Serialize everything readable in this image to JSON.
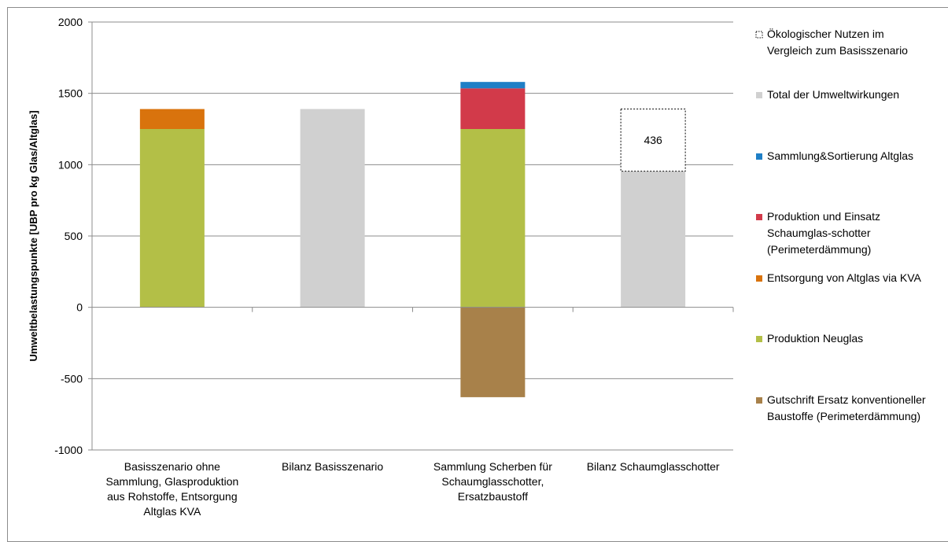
{
  "chart_data": {
    "type": "bar",
    "stacked": true,
    "ylabel": "Umweltbelastungspunkte [UBP pro kg  Glas/Altglas]",
    "ylim": [
      -1000,
      2000
    ],
    "yticks": [
      -1000,
      -500,
      0,
      500,
      1000,
      1500,
      2000
    ],
    "grid": true,
    "legend_position": "right",
    "categories": [
      [
        "Basisszenario ohne",
        "Sammlung, Glasproduktion",
        "aus Rohstoffe, Entsorgung",
        "Altglas KVA"
      ],
      [
        "Bilanz Basisszenario"
      ],
      [
        "Sammlung Scherben für",
        "Schaumglasschotter,",
        "Ersatzbaustoff"
      ],
      [
        "Bilanz Schaumglasschotter"
      ]
    ],
    "series": [
      {
        "name": [
          "Ökologischer Nutzen im",
          "Vergleich zum Basisszenario"
        ],
        "color": "#ffffff",
        "style": "dashed-outline",
        "values": [
          0,
          0,
          0,
          436
        ]
      },
      {
        "name": [
          "Total der Umweltwirkungen"
        ],
        "color": "#d0d0d0",
        "values": [
          0,
          1390,
          0,
          954
        ]
      },
      {
        "name": [
          "Sammlung&Sortierung Altglas"
        ],
        "color": "#1f7fc6",
        "values": [
          0,
          0,
          45,
          0
        ]
      },
      {
        "name": [
          "Produktion und Einsatz",
          "Schaumglas-schotter",
          "(Perimeterdämmung)"
        ],
        "color": "#d23a4a",
        "values": [
          0,
          0,
          285,
          0
        ]
      },
      {
        "name": [
          "Entsorgung von Altglas via KVA"
        ],
        "color": "#d9730d",
        "values": [
          140,
          0,
          0,
          0
        ]
      },
      {
        "name": [
          "Produktion Neuglas"
        ],
        "color": "#b3bf47",
        "values": [
          1250,
          0,
          1250,
          0
        ]
      },
      {
        "name": [
          "Gutschrift Ersatz konventioneller",
          "Baustoffe (Perimeterdämmung)"
        ],
        "color": "#a8814a",
        "values": [
          0,
          0,
          -630,
          0
        ]
      }
    ],
    "data_labels": [
      {
        "category_index": 3,
        "series_index": 0,
        "text": "436"
      }
    ]
  }
}
